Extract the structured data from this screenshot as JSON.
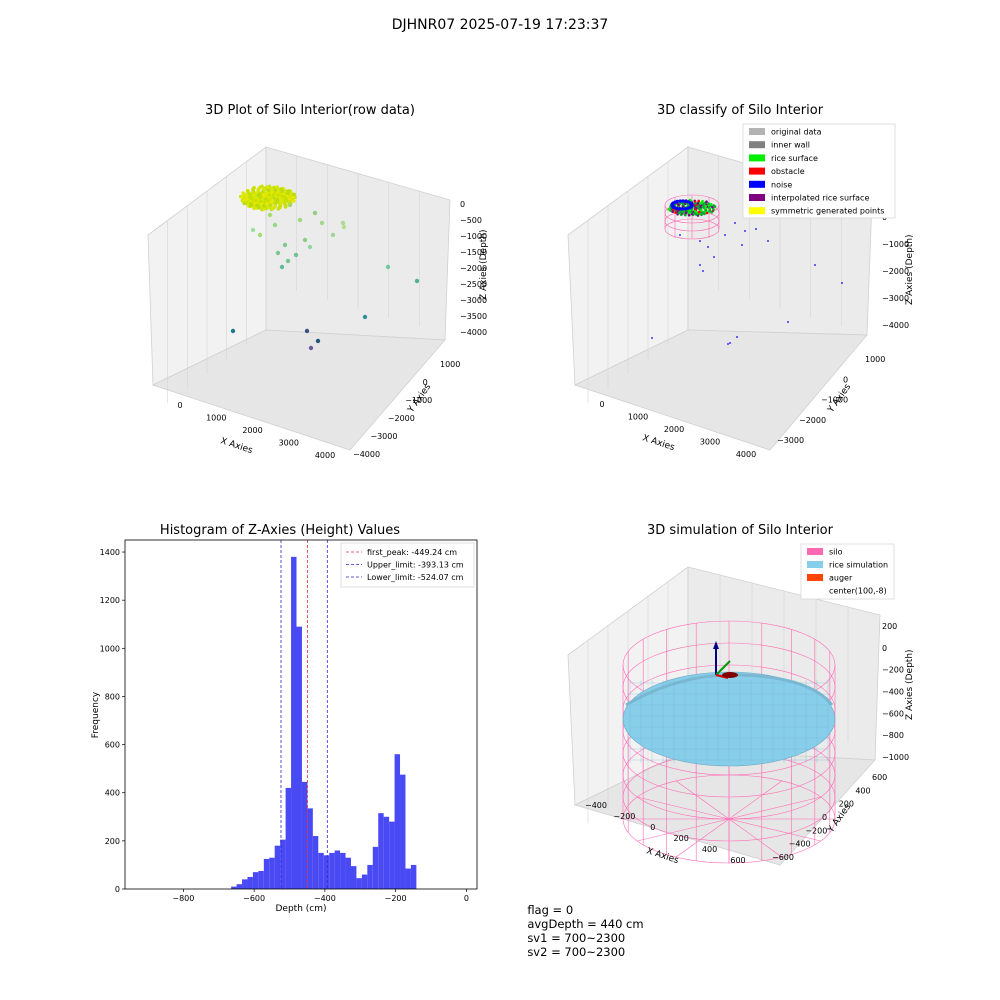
{
  "suptitle": "DJHNR07 2025-07-19 17:23:37",
  "status": {
    "flag": "flag = 0",
    "avg_depth": "avgDepth = 440 cm",
    "sv1": "sv1 = 700~2300",
    "sv2": "sv2 = 700~2300"
  },
  "colors": {
    "hist_bar": "#4a4af5",
    "peak_line": "#e03030",
    "limit_line": "#2a2ad0",
    "original": "#b3b3b3",
    "inner_wall": "#808080",
    "rice_surface": "#00ee00",
    "obstacle": "#ff0000",
    "noise": "#0000ff",
    "interp": "#800080",
    "symmetric": "#ffff00",
    "silo": "#ff69b4",
    "rice_sim": "#87ceeb",
    "auger": "#ff4500"
  },
  "chart_data": [
    {
      "type": "scatter",
      "title": "3D Plot of Silo Interior(row data)",
      "xlabel": "X Axies",
      "ylabel": "Y Axies",
      "zlabel": "Z Axies (Depth)",
      "x_ticks": [
        "0",
        "1000",
        "2000",
        "3000",
        "4000"
      ],
      "y_ticks": [
        "1000",
        "0",
        "−1000",
        "−2000",
        "−3000",
        "−4000"
      ],
      "z_ticks": [
        "0",
        "−500",
        "−1000",
        "−1500",
        "−2000",
        "−2500",
        "−3000",
        "−3500",
        "−4000"
      ]
    },
    {
      "type": "scatter",
      "title": "3D classify of Silo Interior",
      "xlabel": "X Axies",
      "ylabel": "Y Axies",
      "zlabel": "Z Axies (Depth)",
      "x_ticks": [
        "0",
        "1000",
        "2000",
        "3000",
        "4000"
      ],
      "y_ticks": [
        "1000",
        "0",
        "−1000",
        "−2000",
        "−3000"
      ],
      "z_ticks": [
        "0",
        "−1000",
        "−2000",
        "−3000",
        "−4000"
      ],
      "legend": [
        "original data",
        "inner wall",
        "rice surface",
        "obstacle",
        "noise",
        "interpolated rice surface",
        "symmetric generated points"
      ]
    },
    {
      "type": "bar",
      "title": "Histogram of Z-Axies (Height) Values",
      "xlabel": "Depth (cm)",
      "ylabel": "Frequency",
      "xlim": [
        -965,
        30
      ],
      "ylim": [
        0,
        1450
      ],
      "x_ticks": [
        -800,
        -600,
        -400,
        -200,
        0
      ],
      "x_tick_labels": [
        "−800",
        "−600",
        "−400",
        "−200",
        "0"
      ],
      "y_ticks": [
        0,
        200,
        400,
        600,
        800,
        1000,
        1200,
        1400
      ],
      "bin_start": -665,
      "bin_width": 15.4,
      "values": [
        10,
        20,
        40,
        50,
        70,
        75,
        125,
        130,
        180,
        205,
        420,
        1380,
        1090,
        445,
        335,
        220,
        150,
        140,
        150,
        160,
        150,
        130,
        95,
        45,
        60,
        100,
        175,
        315,
        300,
        280,
        560,
        475,
        85,
        100
      ],
      "lines": [
        {
          "label": "first_peak: -449.24 cm",
          "x": -449.24,
          "color": "peak"
        },
        {
          "label": "Upper_limit: -393.13 cm",
          "x": -393.13,
          "color": "limit"
        },
        {
          "label": "Lower_limit: -524.07 cm",
          "x": -524.07,
          "color": "limit"
        }
      ],
      "legend_position": "top-right"
    },
    {
      "type": "scatter",
      "title": "3D simulation of Silo Interior",
      "xlabel": "X Axies",
      "ylabel": "Y Axies",
      "zlabel": "Z Axies (Depth)",
      "x_ticks": [
        "−400",
        "−200",
        "0",
        "200",
        "400",
        "600"
      ],
      "y_ticks": [
        "600",
        "400",
        "200",
        "0",
        "−200",
        "−400",
        "−600"
      ],
      "z_ticks": [
        "200",
        "0",
        "−200",
        "−400",
        "−600",
        "−800",
        "−1000"
      ],
      "legend": [
        "silo",
        "rice simulation",
        "auger",
        "center(100,-8)"
      ]
    }
  ]
}
